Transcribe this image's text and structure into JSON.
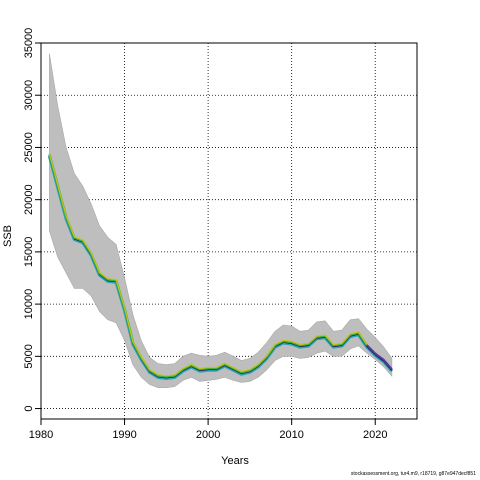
{
  "footer_text": "stockassessment.org, tur4.m9, r18719, g87e947decf851",
  "chart_data": {
    "type": "line",
    "xlabel": "Years",
    "ylabel": "SSB",
    "xlim": [
      1980,
      2025
    ],
    "ylim": [
      -1000,
      35000
    ],
    "grid": true,
    "x_ticks": [
      1980,
      1990,
      2000,
      2010,
      2020
    ],
    "y_ticks": [
      0,
      5000,
      10000,
      15000,
      20000,
      25000,
      30000,
      35000
    ],
    "confidence_band": {
      "x": [
        1981,
        1982,
        1983,
        1984,
        1985,
        1986,
        1987,
        1988,
        1989,
        1990,
        1991,
        1992,
        1993,
        1994,
        1995,
        1996,
        1997,
        1998,
        1999,
        2000,
        2001,
        2002,
        2003,
        2004,
        2005,
        2006,
        2007,
        2008,
        2009,
        2010,
        2011,
        2012,
        2013,
        2014,
        2015,
        2016,
        2017,
        2018,
        2019,
        2020,
        2021,
        2022
      ],
      "lower": [
        17000,
        14500,
        13000,
        11500,
        11500,
        10800,
        9300,
        8500,
        8200,
        6500,
        4200,
        3000,
        2300,
        2000,
        2000,
        2100,
        2700,
        3000,
        2600,
        2700,
        2800,
        3000,
        2700,
        2500,
        2600,
        3000,
        3700,
        4600,
        5000,
        5000,
        4800,
        4900,
        5300,
        5500,
        5000,
        5000,
        5700,
        6000,
        5300,
        4700,
        4000,
        3100
      ],
      "upper": [
        34000,
        29000,
        25000,
        22500,
        21300,
        19600,
        17500,
        16400,
        15700,
        12500,
        9000,
        6500,
        4900,
        4300,
        4200,
        4300,
        5000,
        5300,
        5100,
        5000,
        5100,
        5400,
        5000,
        4600,
        4800,
        5400,
        6300,
        7400,
        8000,
        7900,
        7400,
        7500,
        8300,
        8400,
        7400,
        7500,
        8500,
        8600,
        7600,
        6800,
        5900,
        4800
      ]
    },
    "series": [
      {
        "x": [
          1981,
          1982,
          1983,
          1984,
          1985,
          1986,
          1987,
          1988,
          1989,
          1990,
          1991,
          1992,
          1993,
          1994,
          1995,
          1996,
          1997,
          1998,
          1999,
          2000,
          2001,
          2002,
          2003,
          2004,
          2005,
          2006,
          2007,
          2008,
          2009,
          2010,
          2011,
          2012,
          2013,
          2014,
          2015,
          2016,
          2017,
          2018,
          2019,
          2020,
          2021,
          2022
        ],
        "values": [
          24300,
          21300,
          18300,
          16300,
          16000,
          14800,
          12900,
          12300,
          12200,
          9500,
          6300,
          4800,
          3600,
          3100,
          3000,
          3100,
          3700,
          4100,
          3700,
          3800,
          3800,
          4200,
          3800,
          3400,
          3600,
          4100,
          4900,
          6000,
          6400,
          6300,
          6000,
          6100,
          6800,
          6900,
          6000,
          6100,
          7000,
          7200,
          6000,
          5200,
          4600,
          3700
        ]
      }
    ]
  }
}
